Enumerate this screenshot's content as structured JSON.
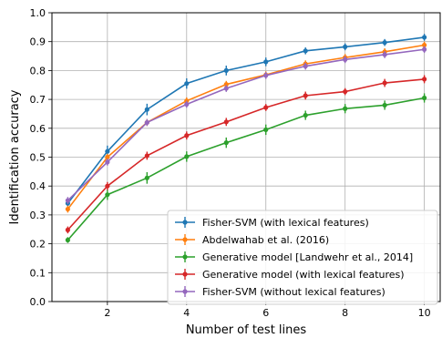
{
  "chart_data": {
    "type": "line",
    "xlabel": "Number of test lines",
    "ylabel": "Identification accuracy",
    "xlim": [
      0.6,
      10.4
    ],
    "ylim": [
      0.0,
      1.0
    ],
    "xticks": [
      2,
      4,
      6,
      8,
      10
    ],
    "yticks": [
      0.0,
      0.1,
      0.2,
      0.3,
      0.4,
      0.5,
      0.6,
      0.7,
      0.8,
      0.9,
      1.0
    ],
    "grid": true,
    "legend_position": "lower-right",
    "x": [
      1,
      2,
      3,
      4,
      5,
      6,
      7,
      8,
      9,
      10
    ],
    "series": [
      {
        "name": "Fisher-SVM (with lexical features)",
        "color": "#1f77b4",
        "values": [
          0.34,
          0.52,
          0.665,
          0.755,
          0.8,
          0.83,
          0.868,
          0.882,
          0.897,
          0.915
        ],
        "errors": [
          0.01,
          0.02,
          0.02,
          0.018,
          0.017,
          0.015,
          0.012,
          0.012,
          0.012,
          0.012
        ]
      },
      {
        "name": "Abdelwahab et al. (2016)",
        "color": "#ff7f0e",
        "values": [
          0.32,
          0.5,
          0.62,
          0.695,
          0.752,
          0.785,
          0.823,
          0.845,
          0.865,
          0.888
        ],
        "errors": [
          0.012,
          0.012,
          0.012,
          0.012,
          0.012,
          0.012,
          0.012,
          0.012,
          0.012,
          0.012
        ]
      },
      {
        "name": "Generative model [Landwehr et al., 2014]",
        "color": "#2ca02c",
        "values": [
          0.213,
          0.37,
          0.428,
          0.502,
          0.55,
          0.595,
          0.645,
          0.668,
          0.68,
          0.705
        ],
        "errors": [
          0.01,
          0.018,
          0.02,
          0.018,
          0.018,
          0.018,
          0.016,
          0.016,
          0.016,
          0.016
        ]
      },
      {
        "name": "Generative model (with lexical features)",
        "color": "#d62728",
        "values": [
          0.248,
          0.4,
          0.505,
          0.575,
          0.622,
          0.672,
          0.713,
          0.727,
          0.757,
          0.77
        ],
        "errors": [
          0.012,
          0.014,
          0.014,
          0.014,
          0.014,
          0.012,
          0.014,
          0.012,
          0.014,
          0.014
        ]
      },
      {
        "name": "Fisher-SVM (without lexical features)",
        "color": "#9467bd",
        "values": [
          0.35,
          0.483,
          0.62,
          0.683,
          0.738,
          0.783,
          0.815,
          0.838,
          0.855,
          0.873
        ],
        "errors": [
          0.012,
          0.012,
          0.012,
          0.012,
          0.012,
          0.012,
          0.012,
          0.012,
          0.012,
          0.012
        ]
      }
    ]
  }
}
